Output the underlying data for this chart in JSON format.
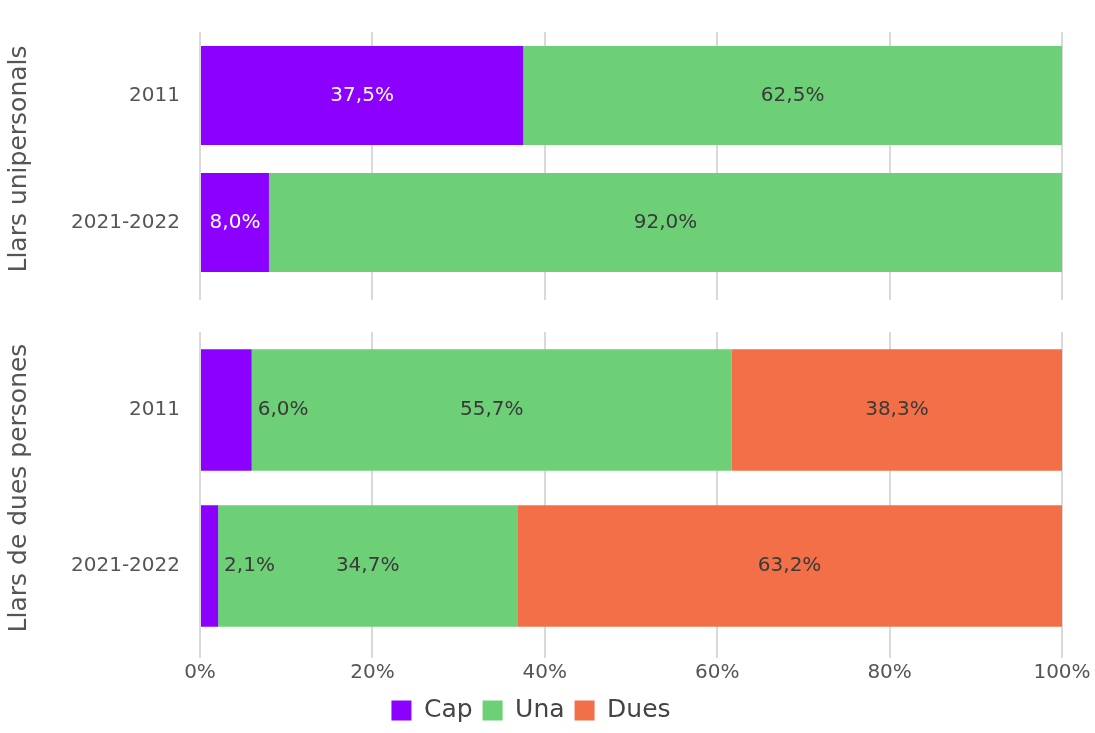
{
  "chart_data": [
    {
      "type": "bar",
      "orientation": "horizontal",
      "stacked": true,
      "ylabel": "Llars unipersonals",
      "categories": [
        "2011",
        "2021-2022"
      ],
      "series": [
        {
          "color": "#8b00ff",
          "values": [
            37.5,
            8.0
          ],
          "value_labels": [
            "37,5%",
            "8,0%"
          ]
        },
        {
          "color": "#6dcf76",
          "values": [
            62.5,
            92.0
          ],
          "value_labels": [
            "62,5%",
            "92,0%"
          ]
        }
      ],
      "xlim": [
        0,
        100
      ],
      "xticks": [
        {
          "value": 0,
          "label": null
        },
        {
          "value": 20,
          "label": null
        },
        {
          "value": 40,
          "label": null
        },
        {
          "value": 60,
          "label": null
        },
        {
          "value": 80,
          "label": null
        },
        {
          "value": 100,
          "label": null
        }
      ],
      "grid": "x",
      "tick_labels": "y",
      "legend": false
    },
    {
      "type": "bar",
      "orientation": "horizontal",
      "stacked": true,
      "ylabel": "Llars de dues persones",
      "categories": [
        "2011",
        "2021-2022"
      ],
      "series": [
        {
          "name": "Cap",
          "color": "#8b00ff",
          "values": [
            6.0,
            2.1
          ],
          "value_labels": [
            "6,0%",
            "2,1%"
          ]
        },
        {
          "name": "Una",
          "color": "#6dcf76",
          "values": [
            55.7,
            34.7
          ],
          "value_labels": [
            "55,7%",
            "34,7%"
          ]
        },
        {
          "name": "Dues",
          "color": "#f26f47",
          "values": [
            38.3,
            63.2
          ],
          "value_labels": [
            "38,3%",
            "63,2%"
          ]
        }
      ],
      "xlim": [
        0,
        100
      ],
      "xticks": [
        {
          "value": 0,
          "label": "0%"
        },
        {
          "value": 20,
          "label": "20%"
        },
        {
          "value": 40,
          "label": "40%"
        },
        {
          "value": 60,
          "label": "60%"
        },
        {
          "value": 80,
          "label": "80%"
        },
        {
          "value": 100,
          "label": "100%"
        }
      ],
      "grid": "x",
      "legend": "bottom"
    }
  ]
}
